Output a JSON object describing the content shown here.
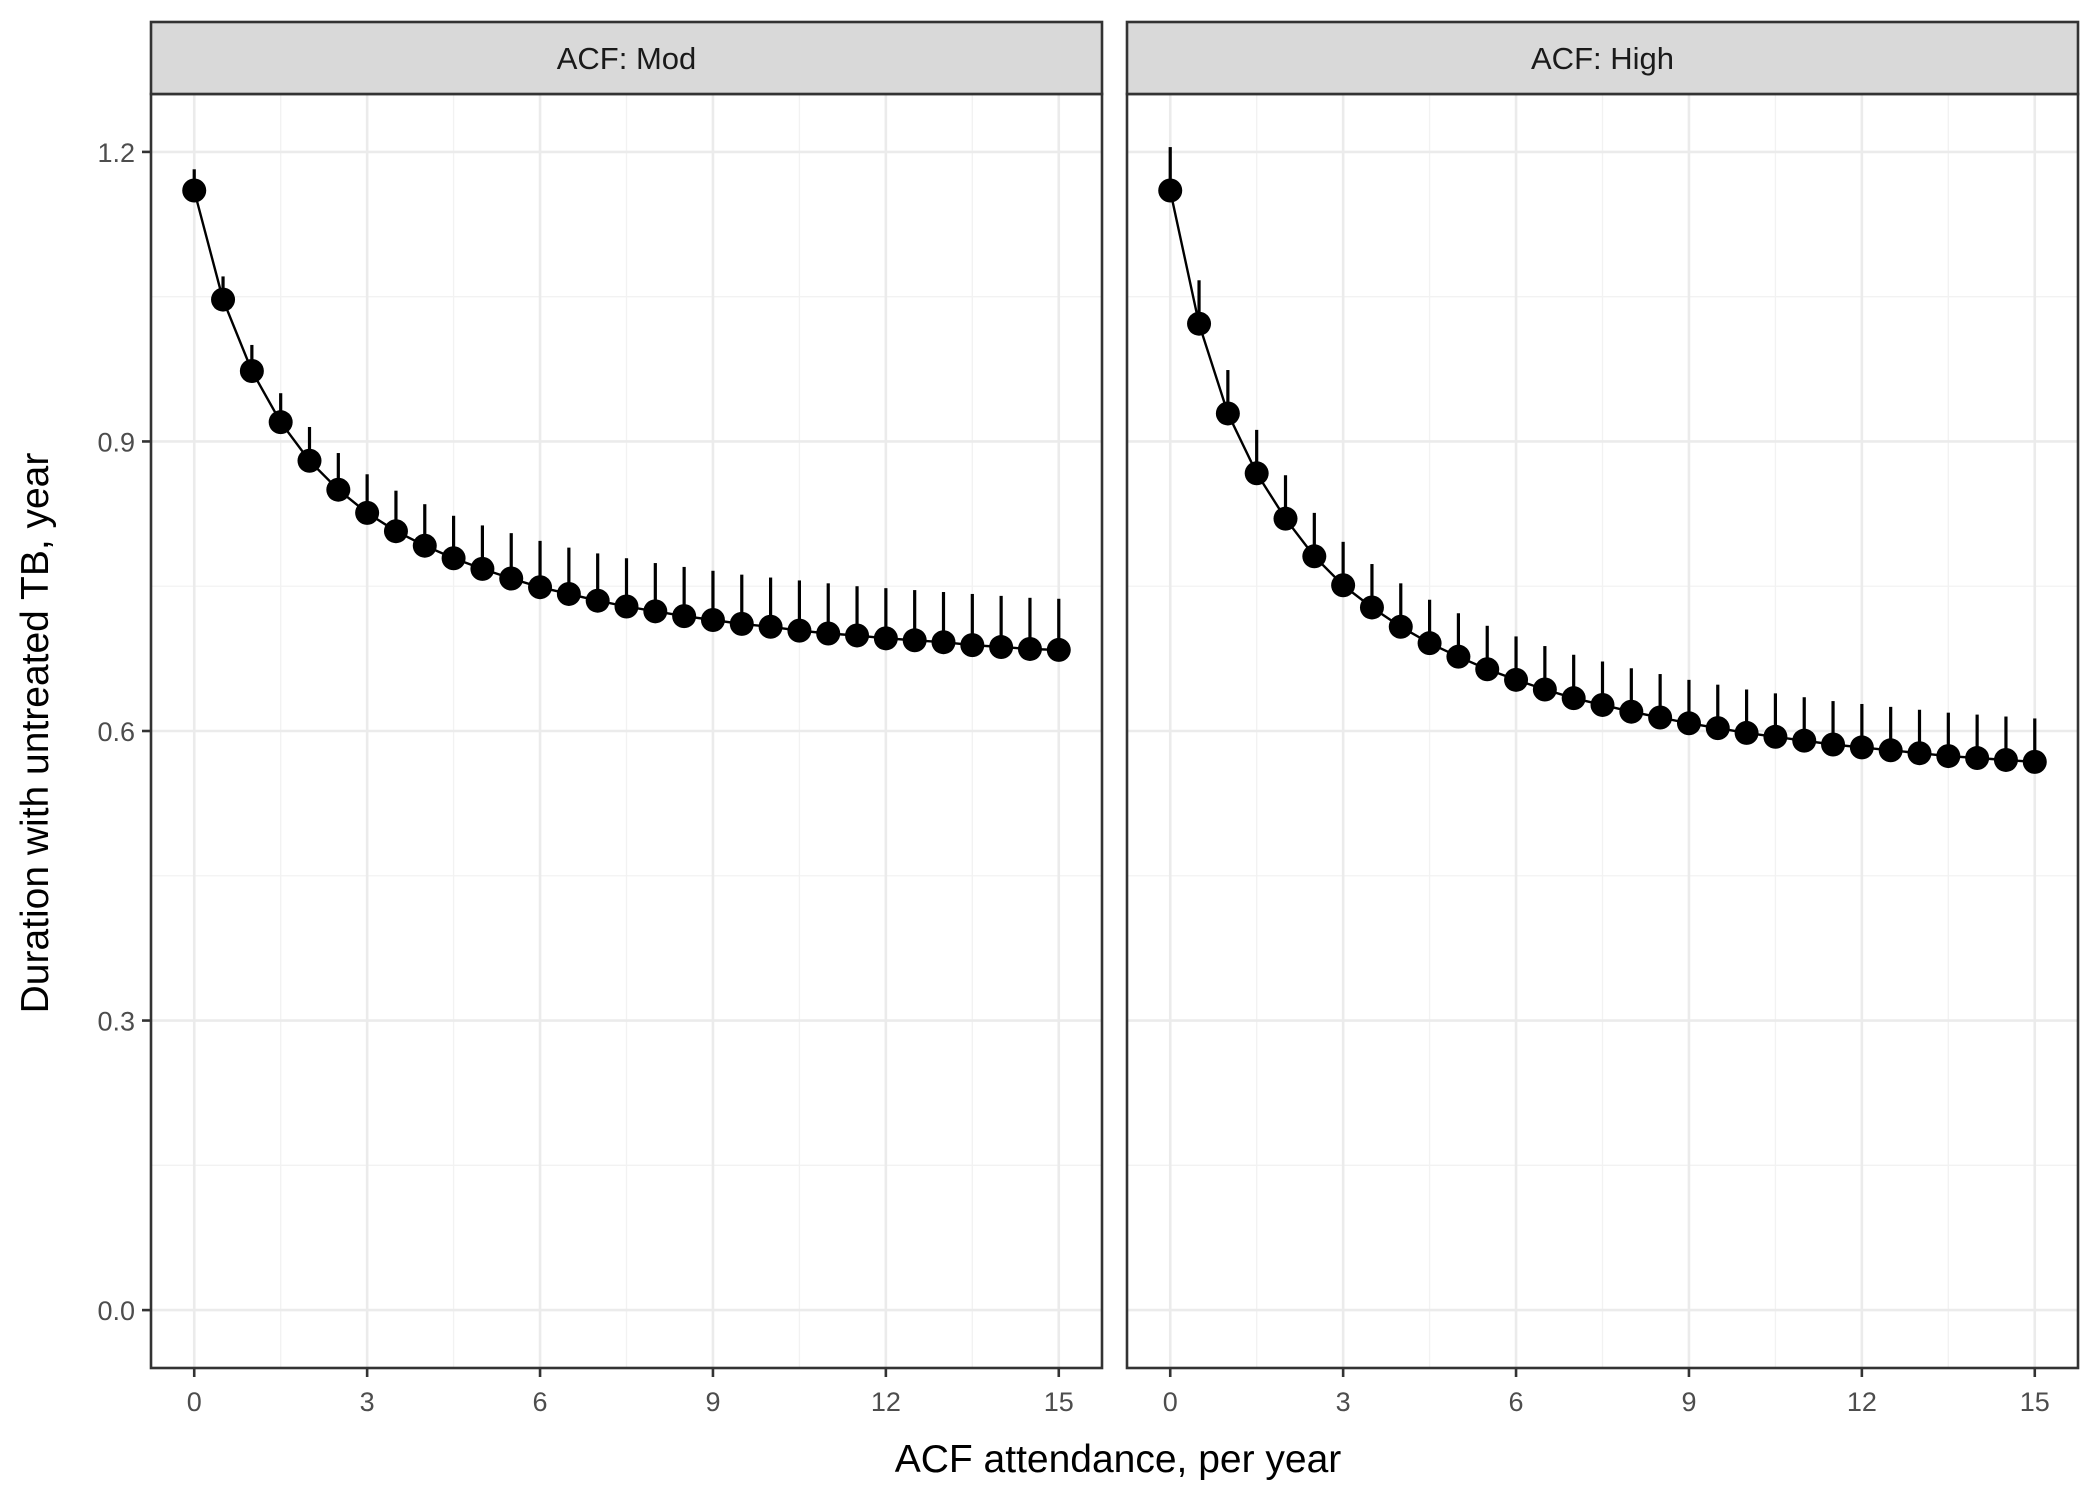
{
  "chart_data": {
    "type": "scatter",
    "xlabel": "ACF attendance, per year",
    "ylabel": "Duration with untreated TB, year",
    "xlim": [
      -0.75,
      15.75
    ],
    "ylim": [
      -0.06,
      1.26
    ],
    "x_ticks": [
      0,
      3,
      6,
      9,
      12,
      15
    ],
    "y_ticks": [
      0.0,
      0.3,
      0.6,
      0.9,
      1.2
    ],
    "x_tick_labels": [
      "0",
      "3",
      "6",
      "9",
      "12",
      "15"
    ],
    "y_tick_labels": [
      "0.0",
      "0.3",
      "0.6",
      "0.9",
      "1.2"
    ],
    "grid": true,
    "legend": "none",
    "panels": [
      {
        "label": "ACF: Mod",
        "x": [
          0,
          0.5,
          1,
          1.5,
          2,
          2.5,
          3,
          3.5,
          4,
          4.5,
          5,
          5.5,
          6,
          6.5,
          7,
          7.5,
          8,
          8.5,
          9,
          9.5,
          10,
          10.5,
          11,
          11.5,
          12,
          12.5,
          13,
          13.5,
          14,
          14.5,
          15
        ],
        "y": [
          1.16,
          1.047,
          0.973,
          0.92,
          0.88,
          0.85,
          0.826,
          0.807,
          0.792,
          0.779,
          0.768,
          0.758,
          0.749,
          0.742,
          0.735,
          0.729,
          0.724,
          0.719,
          0.715,
          0.711,
          0.708,
          0.704,
          0.701,
          0.699,
          0.696,
          0.694,
          0.692,
          0.689,
          0.687,
          0.685,
          0.684
        ],
        "upper": [
          1.182,
          1.071,
          1.0,
          0.95,
          0.915,
          0.888,
          0.866,
          0.849,
          0.835,
          0.823,
          0.813,
          0.805,
          0.797,
          0.79,
          0.784,
          0.779,
          0.774,
          0.77,
          0.766,
          0.762,
          0.759,
          0.756,
          0.753,
          0.75,
          0.748,
          0.746,
          0.744,
          0.742,
          0.74,
          0.738,
          0.737
        ]
      },
      {
        "label": "ACF: High",
        "x": [
          0,
          0.5,
          1,
          1.5,
          2,
          2.5,
          3,
          3.5,
          4,
          4.5,
          5,
          5.5,
          6,
          6.5,
          7,
          7.5,
          8,
          8.5,
          9,
          9.5,
          10,
          10.5,
          11,
          11.5,
          12,
          12.5,
          13,
          13.5,
          14,
          14.5,
          15
        ],
        "y": [
          1.16,
          1.022,
          0.929,
          0.867,
          0.82,
          0.781,
          0.751,
          0.728,
          0.708,
          0.691,
          0.677,
          0.664,
          0.653,
          0.643,
          0.634,
          0.627,
          0.62,
          0.614,
          0.608,
          0.603,
          0.598,
          0.594,
          0.59,
          0.586,
          0.583,
          0.58,
          0.577,
          0.574,
          0.572,
          0.57,
          0.568
        ]
      }
    ]
  }
}
